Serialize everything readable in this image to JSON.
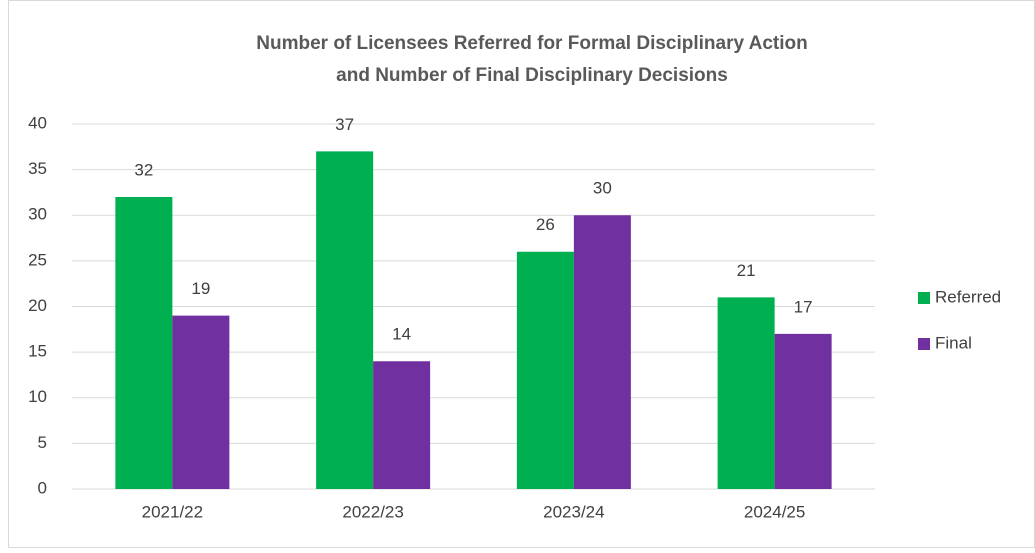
{
  "chart_data": {
    "type": "bar",
    "title": [
      "Number of Licensees Referred for Formal Disciplinary Action",
      "and Number of Final Disciplinary Decisions"
    ],
    "categories": [
      "2021/22",
      "2022/23",
      "2023/24",
      "2024/25"
    ],
    "series": [
      {
        "name": "Referred",
        "color": "#00b050",
        "values": [
          32,
          37,
          26,
          21
        ]
      },
      {
        "name": "Final",
        "color": "#7030a0",
        "values": [
          19,
          14,
          30,
          17
        ]
      }
    ],
    "ylim": [
      0,
      40
    ],
    "yticks": [
      0,
      5,
      10,
      15,
      20,
      25,
      30,
      35,
      40
    ],
    "grid": true,
    "legend": "right"
  }
}
